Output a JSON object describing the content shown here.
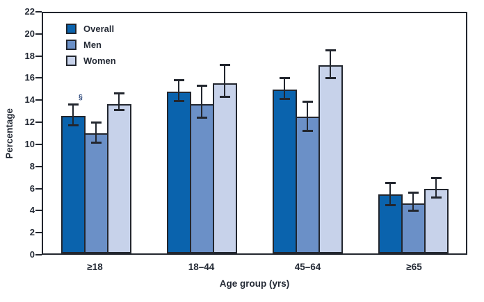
{
  "figure": {
    "background": "#ffffff"
  },
  "colors": {
    "axis_line": "#22262e",
    "text": "#242a35",
    "footnote_marker": "#2f4a7c"
  },
  "chart_data": {
    "type": "bar",
    "title": "",
    "xlabel": "Age group (yrs)",
    "ylabel": "Percentage",
    "ylim": [
      0,
      22
    ],
    "yticks": [
      0,
      2,
      4,
      6,
      8,
      10,
      12,
      14,
      16,
      18,
      20,
      22
    ],
    "grid": false,
    "legend_position": "top-left-inside",
    "categories": [
      "≥18",
      "18–44",
      "45–64",
      "≥65"
    ],
    "series": [
      {
        "name": "Overall",
        "color": "#0a63ad",
        "values": [
          12.6,
          14.8,
          15.0,
          5.4
        ],
        "ci_low": [
          11.7,
          13.9,
          14.1,
          4.4
        ],
        "ci_high": [
          13.7,
          15.9,
          16.1,
          6.5
        ]
      },
      {
        "name": "Men",
        "color": "#6b90c7",
        "values": [
          11.0,
          13.7,
          12.5,
          4.6
        ],
        "ci_low": [
          10.1,
          12.4,
          11.2,
          3.9
        ],
        "ci_high": [
          12.0,
          15.4,
          13.9,
          5.6
        ]
      },
      {
        "name": "Women",
        "color": "#c7d2ea",
        "values": [
          13.7,
          15.6,
          17.2,
          5.9
        ],
        "ci_low": [
          13.1,
          14.3,
          16.0,
          5.1
        ],
        "ci_high": [
          14.7,
          17.3,
          18.6,
          6.9
        ]
      }
    ],
    "error_bars": true,
    "annotations": [
      {
        "text": "§",
        "category_index": 0,
        "series_index": 0,
        "position": "right-of-error-bar-top"
      }
    ]
  }
}
